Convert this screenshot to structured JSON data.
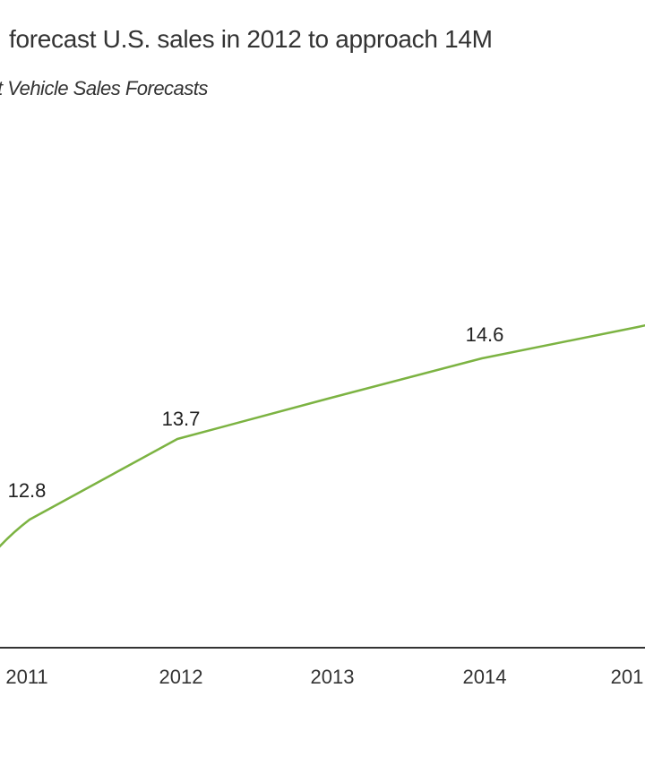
{
  "header": {
    "title": "forecast U.S. sales in 2012 to approach 14M",
    "subtitle": "t Vehicle Sales Forecasts"
  },
  "colors": {
    "line": "#7cb342",
    "axis": "#333333"
  },
  "chart_data": {
    "type": "line",
    "title": "forecast U.S. sales in 2012 to approach 14M",
    "subtitle": "t Vehicle Sales Forecasts",
    "xlabel": "",
    "ylabel": "",
    "categories": [
      "2011",
      "2012",
      "2013",
      "2014",
      "201"
    ],
    "series": [
      {
        "name": "Vehicle Sales Forecast (M)",
        "values": [
          12.8,
          13.7,
          14.15,
          14.6,
          14.95
        ]
      }
    ],
    "data_labels": [
      "12.8",
      "13.7",
      "",
      "14.6",
      ""
    ],
    "ylim": [
      11.5,
      16.5
    ],
    "grid": false,
    "legend": "none"
  }
}
